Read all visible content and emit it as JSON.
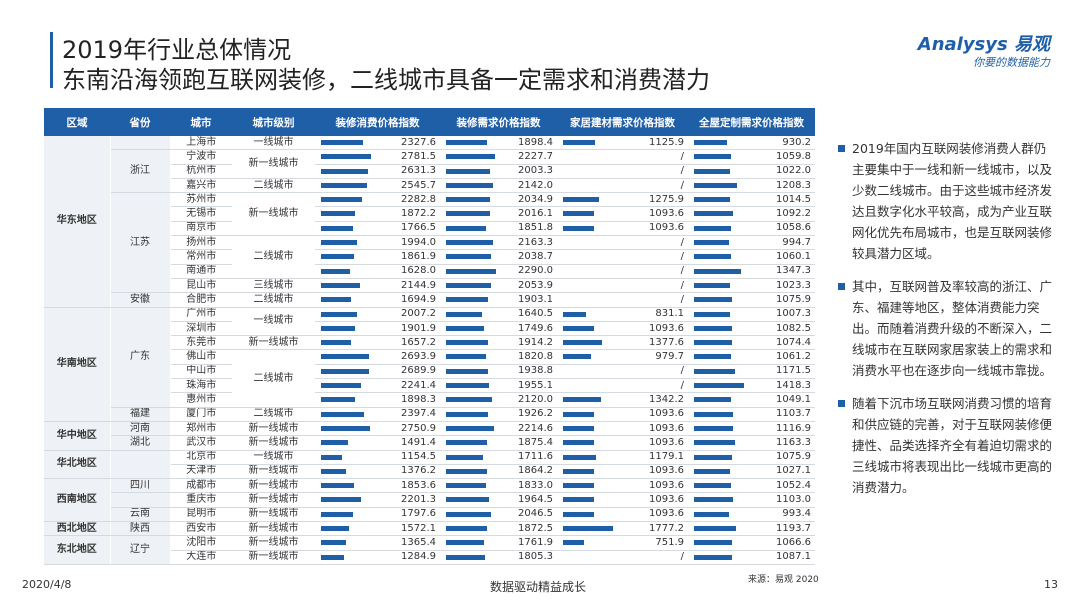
{
  "header": {
    "title": "2019年行业总体情况",
    "subtitle": "东南沿海领跑互联网装修，二线城市具备一定需求和消费潜力"
  },
  "logo": {
    "brand": "Analysys 易观",
    "slogan": "你要的数据能力"
  },
  "table": {
    "columns": [
      "区域",
      "省份",
      "城市",
      "城市级别",
      "装修消费价格指数",
      "装修需求价格指数",
      "家居建材需求价格指数",
      "全屋定制需求价格指数"
    ],
    "regions": [
      {
        "name": "华东地区",
        "rows": 12
      },
      {
        "name": "华南地区",
        "rows": 8
      },
      {
        "name": "华中地区",
        "rows": 2
      },
      {
        "name": "华北地区",
        "rows": 2
      },
      {
        "name": "西南地区",
        "rows": 3
      },
      {
        "name": "西北地区",
        "rows": 1
      },
      {
        "name": "东北地区",
        "rows": 2
      }
    ],
    "provinces": [
      {
        "name": null,
        "rows": 1
      },
      {
        "name": "浙江",
        "rows": 3
      },
      {
        "name": "江苏",
        "rows": 7
      },
      {
        "name": "安徽",
        "rows": 1
      },
      {
        "name": "广东",
        "rows": 7
      },
      {
        "name": "福建",
        "rows": 1
      },
      {
        "name": "河南",
        "rows": 1
      },
      {
        "name": "湖北",
        "rows": 1
      },
      {
        "name": null,
        "rows": 2
      },
      {
        "name": "四川",
        "rows": 1
      },
      {
        "name": null,
        "rows": 1
      },
      {
        "name": "云南",
        "rows": 1
      },
      {
        "name": "陕西",
        "rows": 1
      },
      {
        "name": "辽宁",
        "rows": 2
      }
    ],
    "levels": [
      {
        "name": "一线城市",
        "rows": 1
      },
      {
        "name": "新一线城市",
        "rows": 2
      },
      {
        "name": "二线城市",
        "rows": 1
      },
      {
        "name": "新一线城市",
        "rows": 3
      },
      {
        "name": "二线城市",
        "rows": 3
      },
      {
        "name": "三线城市",
        "rows": 1
      },
      {
        "name": "二线城市",
        "rows": 1
      },
      {
        "name": "一线城市",
        "rows": 2
      },
      {
        "name": "新一线城市",
        "rows": 1
      },
      {
        "name": "二线城市",
        "rows": 4
      },
      {
        "name": "二线城市",
        "rows": 1
      },
      {
        "name": "新一线城市",
        "rows": 1
      },
      {
        "name": "新一线城市",
        "rows": 1
      },
      {
        "name": "一线城市",
        "rows": 1
      },
      {
        "name": "新一线城市",
        "rows": 1
      },
      {
        "name": "新一线城市",
        "rows": 1
      },
      {
        "name": "新一线城市",
        "rows": 1
      },
      {
        "name": "新一线城市",
        "rows": 1
      },
      {
        "name": "新一线城市",
        "rows": 1
      },
      {
        "name": "新一线城市",
        "rows": 1
      },
      {
        "name": "新一线城市",
        "rows": 1
      }
    ],
    "cities": [
      "上海市",
      "宁波市",
      "杭州市",
      "嘉兴市",
      "苏州市",
      "无锡市",
      "南京市",
      "扬州市",
      "常州市",
      "南通市",
      "昆山市",
      "合肥市",
      "广州市",
      "深圳市",
      "东莞市",
      "佛山市",
      "中山市",
      "珠海市",
      "惠州市",
      "厦门市",
      "郑州市",
      "武汉市",
      "北京市",
      "天津市",
      "成都市",
      "重庆市",
      "昆明市",
      "西安市",
      "沈阳市",
      "大连市"
    ],
    "values": [
      [
        "2327.6",
        "1898.4",
        "1125.9",
        "930.2"
      ],
      [
        "2781.5",
        "2227.7",
        "/",
        "1059.8"
      ],
      [
        "2631.3",
        "2003.3",
        "/",
        "1022.0"
      ],
      [
        "2545.7",
        "2142.0",
        "/",
        "1208.3"
      ],
      [
        "2282.8",
        "2034.9",
        "1275.9",
        "1014.5"
      ],
      [
        "1872.2",
        "2016.1",
        "1093.6",
        "1092.2"
      ],
      [
        "1766.5",
        "1851.8",
        "1093.6",
        "1058.6"
      ],
      [
        "1994.0",
        "2163.3",
        "/",
        "994.7"
      ],
      [
        "1861.9",
        "2038.7",
        "/",
        "1060.1"
      ],
      [
        "1628.0",
        "2290.0",
        "/",
        "1347.3"
      ],
      [
        "2144.9",
        "2053.9",
        "/",
        "1023.3"
      ],
      [
        "1694.9",
        "1903.1",
        "/",
        "1075.9"
      ],
      [
        "2007.2",
        "1640.5",
        "831.1",
        "1007.3"
      ],
      [
        "1901.9",
        "1749.6",
        "1093.6",
        "1082.5"
      ],
      [
        "1657.2",
        "1914.2",
        "1377.6",
        "1074.4"
      ],
      [
        "2693.9",
        "1820.8",
        "979.7",
        "1061.2"
      ],
      [
        "2689.9",
        "1938.8",
        "/",
        "1171.5"
      ],
      [
        "2241.4",
        "1955.1",
        "/",
        "1418.3"
      ],
      [
        "1898.3",
        "2120.0",
        "1342.2",
        "1049.1"
      ],
      [
        "2397.4",
        "1926.2",
        "1093.6",
        "1103.7"
      ],
      [
        "2750.9",
        "2214.6",
        "1093.6",
        "1116.9"
      ],
      [
        "1491.4",
        "1875.4",
        "1093.6",
        "1163.3"
      ],
      [
        "1154.5",
        "1711.6",
        "1179.1",
        "1075.9"
      ],
      [
        "1376.2",
        "1864.2",
        "1093.6",
        "1027.1"
      ],
      [
        "1853.6",
        "1833.0",
        "1093.6",
        "1052.4"
      ],
      [
        "2201.3",
        "1964.5",
        "1093.6",
        "1103.0"
      ],
      [
        "1797.6",
        "2046.5",
        "1093.6",
        "993.4"
      ],
      [
        "1572.1",
        "1872.5",
        "1777.2",
        "1193.7"
      ],
      [
        "1365.4",
        "1761.9",
        "751.9",
        "1066.6"
      ],
      [
        "1284.9",
        "1805.3",
        "/",
        "1087.1"
      ]
    ]
  },
  "notes": [
    "2019年国内互联网装修消费人群仍主要集中于一线和新一线城市，以及少数二线城市。由于这些城市经济发达且数字化水平较高，成为产业互联网化优先布局城市，也是互联网装修较具潜力区域。",
    "其中，互联网普及率较高的浙江、广东、福建等地区，整体消费能力突出。而随着消费升级的不断深入，二线城市在互联网家居家装上的需求和消费水平也在逐步向一线城市靠拢。",
    "随着下沉市场互联网消费习惯的培育和供应链的完善，对于互联网装修便捷性、品类选择齐全有着迫切需求的三线城市将表现出比一线城市更高的消费潜力。"
  ],
  "footer": {
    "date": "2020/4/8",
    "slogan": "数据驱动精益成长",
    "source": "来源：易观 2020",
    "page": "13"
  }
}
